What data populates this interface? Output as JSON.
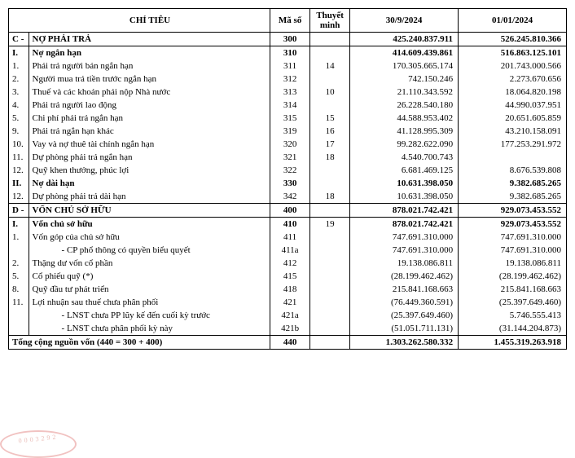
{
  "header": {
    "chitieu": "CHỈ TIÊU",
    "maso": "Mã số",
    "thuyetminh": "Thuyết minh",
    "date1": "30/9/2024",
    "date2": "01/01/2024"
  },
  "rows": [
    {
      "idx": "C -",
      "label": "NỢ PHẢI TRẢ",
      "maso": "300",
      "tm": "",
      "v1": "425.240.837.911",
      "v2": "526.245.810.366",
      "bold": true,
      "border": true
    },
    {
      "idx": "I.",
      "label": "Nợ ngắn hạn",
      "maso": "310",
      "tm": "",
      "v1": "414.609.439.861",
      "v2": "516.863.125.101",
      "bold": true
    },
    {
      "idx": "1.",
      "label": "Phải trả người bán ngắn hạn",
      "maso": "311",
      "tm": "14",
      "v1": "170.305.665.174",
      "v2": "201.743.000.566"
    },
    {
      "idx": "2.",
      "label": "Người mua trả tiền trước ngắn hạn",
      "maso": "312",
      "tm": "",
      "v1": "742.150.246",
      "v2": "2.273.670.656"
    },
    {
      "idx": "3.",
      "label": "Thuế và các khoản phải nộp Nhà nước",
      "maso": "313",
      "tm": "10",
      "v1": "21.110.343.592",
      "v2": "18.064.820.198"
    },
    {
      "idx": "4.",
      "label": "Phải trả người lao động",
      "maso": "314",
      "tm": "",
      "v1": "26.228.540.180",
      "v2": "44.990.037.951"
    },
    {
      "idx": "5.",
      "label": "Chi phí phải trả ngắn hạn",
      "maso": "315",
      "tm": "15",
      "v1": "44.588.953.402",
      "v2": "20.651.605.859"
    },
    {
      "idx": "9.",
      "label": "Phải trả ngắn hạn khác",
      "maso": "319",
      "tm": "16",
      "v1": "41.128.995.309",
      "v2": "43.210.158.091"
    },
    {
      "idx": "10.",
      "label": "Vay và nợ thuê tài chính ngắn hạn",
      "maso": "320",
      "tm": "17",
      "v1": "99.282.622.090",
      "v2": "177.253.291.972"
    },
    {
      "idx": "11.",
      "label": "Dự phòng phải trả ngắn hạn",
      "maso": "321",
      "tm": "18",
      "v1": "4.540.700.743",
      "v2": ""
    },
    {
      "idx": "12.",
      "label": "Quỹ khen thưởng, phúc lợi",
      "maso": "322",
      "tm": "",
      "v1": "6.681.469.125",
      "v2": "8.676.539.808"
    },
    {
      "idx": "II.",
      "label": "Nợ dài hạn",
      "maso": "330",
      "tm": "",
      "v1": "10.631.398.050",
      "v2": "9.382.685.265",
      "bold": true
    },
    {
      "idx": "12.",
      "label": "Dự phòng phải trả dài hạn",
      "maso": "342",
      "tm": "18",
      "v1": "10.631.398.050",
      "v2": "9.382.685.265"
    },
    {
      "idx": "D -",
      "label": "VỐN CHỦ SỞ HỮU",
      "maso": "400",
      "tm": "",
      "v1": "878.021.742.421",
      "v2": "929.073.453.552",
      "bold": true,
      "border": true
    },
    {
      "idx": "I.",
      "label": "Vốn chủ sở hữu",
      "maso": "410",
      "tm": "19",
      "v1": "878.021.742.421",
      "v2": "929.073.453.552",
      "bold": true
    },
    {
      "idx": "1.",
      "label": "Vốn góp của chủ sở hữu",
      "maso": "411",
      "tm": "",
      "v1": "747.691.310.000",
      "v2": "747.691.310.000"
    },
    {
      "idx": "",
      "label": "- CP phổ thông có quyền biểu quyết",
      "maso": "411a",
      "tm": "",
      "v1": "747.691.310.000",
      "v2": "747.691.310.000",
      "indent": 2
    },
    {
      "idx": "2.",
      "label": "Thặng dư vốn cổ phần",
      "maso": "412",
      "tm": "",
      "v1": "19.138.086.811",
      "v2": "19.138.086.811"
    },
    {
      "idx": "5.",
      "label": "Cổ phiếu quỹ (*)",
      "maso": "415",
      "tm": "",
      "v1": "(28.199.462.462)",
      "v2": "(28.199.462.462)"
    },
    {
      "idx": "8.",
      "label": "Quỹ đầu tư phát triển",
      "maso": "418",
      "tm": "",
      "v1": "215.841.168.663",
      "v2": "215.841.168.663"
    },
    {
      "idx": "11.",
      "label": "Lợi nhuận sau thuế chưa phân phối",
      "maso": "421",
      "tm": "",
      "v1": "(76.449.360.591)",
      "v2": "(25.397.649.460)"
    },
    {
      "idx": "",
      "label": "- LNST chưa PP lũy kế đến cuối kỳ trước",
      "maso": "421a",
      "tm": "",
      "v1": "(25.397.649.460)",
      "v2": "5.746.555.413",
      "indent": 2
    },
    {
      "idx": "",
      "label": "- LNST chưa phân phối kỳ này",
      "maso": "421b",
      "tm": "",
      "v1": "(51.051.711.131)",
      "v2": "(31.144.204.873)",
      "indent": 2
    }
  ],
  "total": {
    "label": "Tổng cộng nguồn vốn (440 = 300 + 400)",
    "maso": "440",
    "tm": "",
    "v1": "1.303.262.580.332",
    "v2": "1.455.319.263.918"
  },
  "stamp": "0003292"
}
